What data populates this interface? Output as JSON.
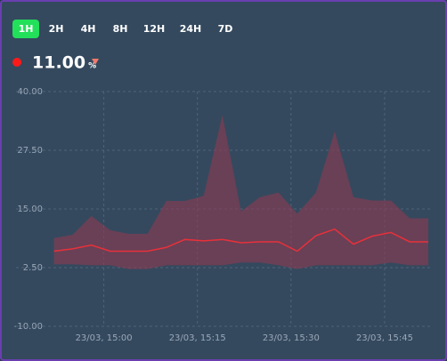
{
  "header": {
    "ranges": [
      "1H",
      "2H",
      "4H",
      "8H",
      "12H",
      "24H",
      "7D"
    ],
    "active_range": 0,
    "current_value": {
      "value": 11,
      "label": "11.00"
    },
    "unit": "%"
  },
  "chart_data": {
    "type": "line",
    "x": [
      892,
      895,
      898,
      901,
      904,
      907,
      910,
      913,
      916,
      919,
      922,
      925,
      928,
      931,
      934,
      937,
      940,
      943,
      946,
      949,
      952
    ],
    "series": [
      {
        "color": "#e8303a",
        "values": [
          6.0,
          6.5,
          7.3,
          6.0,
          6.0,
          6.0,
          6.8,
          8.5,
          8.2,
          8.5,
          7.8,
          8.0,
          8.0,
          6.0,
          9.3,
          10.7,
          7.5,
          9.2,
          10.0,
          8.0,
          8.0
        ]
      }
    ],
    "band": {
      "color": "#8e3a52",
      "upper": [
        8.8,
        9.5,
        13.5,
        10.5,
        9.7,
        9.7,
        16.7,
        16.7,
        17.8,
        35.0,
        14.5,
        17.5,
        18.5,
        14.0,
        18.5,
        31.5,
        17.5,
        16.8,
        16.8,
        13.0,
        13.0
      ],
      "lower": [
        3.2,
        3.2,
        3.0,
        3.0,
        2.2,
        2.2,
        3.0,
        3.0,
        3.0,
        3.0,
        3.6,
        3.6,
        3.0,
        2.2,
        3.0,
        3.0,
        3.0,
        3.0,
        3.6,
        3.0,
        3.0
      ]
    },
    "xlim": [
      891.5,
      952
    ],
    "xticks": [
      {
        "value": 900,
        "label": "23/03, 15:00"
      },
      {
        "value": 915,
        "label": "23/03, 15:15"
      },
      {
        "value": 930,
        "label": "23/03, 15:30"
      },
      {
        "value": 945,
        "label": "23/03, 15:45"
      }
    ],
    "ylim": [
      -10,
      40
    ],
    "yticks": [
      {
        "value": -10,
        "label": "-10.00"
      },
      {
        "value": 2.5,
        "label": "2.50"
      },
      {
        "value": 15,
        "label": "15.00"
      },
      {
        "value": 27.5,
        "label": "27.50"
      },
      {
        "value": 40,
        "label": "40.00"
      }
    ],
    "grid": true
  }
}
